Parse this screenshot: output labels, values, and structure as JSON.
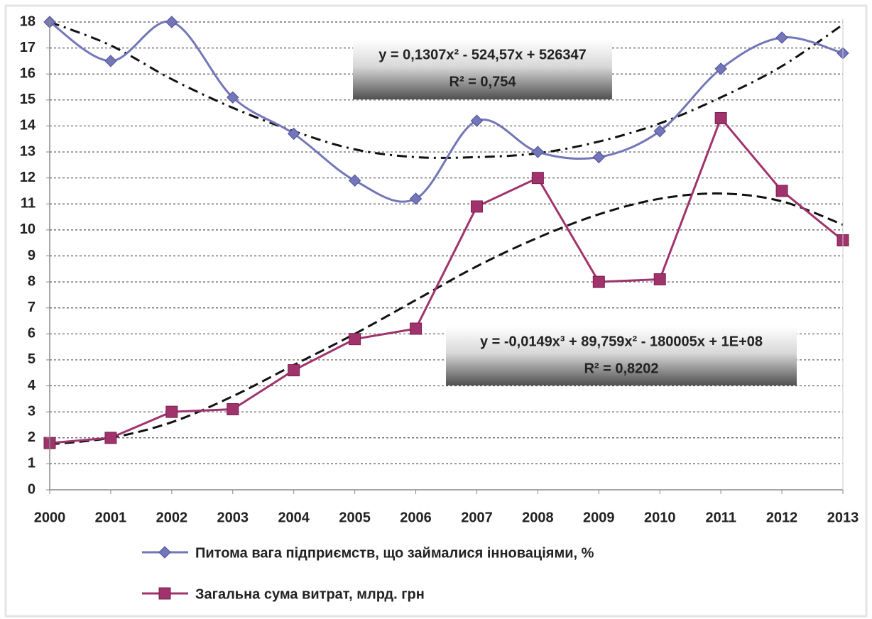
{
  "chart_data": {
    "type": "line",
    "categories": [
      "2000",
      "2001",
      "2002",
      "2003",
      "2004",
      "2005",
      "2006",
      "2007",
      "2008",
      "2009",
      "2010",
      "2011",
      "2012",
      "2013"
    ],
    "series": [
      {
        "name": "Питома вага підприємств, що займалися інноваціями, %",
        "color": "#7376b8",
        "marker": "diamond",
        "smooth": true,
        "values": [
          18,
          16.5,
          18,
          15.1,
          13.7,
          11.9,
          11.2,
          14.2,
          13.0,
          12.8,
          13.8,
          16.2,
          17.4,
          16.8
        ]
      },
      {
        "name": "Загальна сума витрат, млрд. грн",
        "color": "#a0336c",
        "marker": "square",
        "smooth": false,
        "values": [
          1.8,
          2.0,
          3.0,
          3.1,
          4.6,
          5.8,
          6.2,
          10.9,
          12.0,
          8.0,
          8.1,
          14.3,
          11.5,
          9.6
        ]
      }
    ],
    "trendlines": [
      {
        "dash": "14 7 3 7",
        "values": [
          18.0,
          17.1,
          15.8,
          14.7,
          13.8,
          13.1,
          12.8,
          12.8,
          12.95,
          13.4,
          14.1,
          15.1,
          16.3,
          17.9
        ]
      },
      {
        "dash": "14 7",
        "values": [
          1.75,
          2.0,
          2.6,
          3.6,
          4.8,
          6.0,
          7.3,
          8.6,
          9.7,
          10.6,
          11.2,
          11.4,
          11.1,
          10.2
        ]
      }
    ],
    "annotations": [
      {
        "equation": "y = 0,1307x² - 524,57x + 526347",
        "r2": "R² = 0,754"
      },
      {
        "equation": "y = -0,0149x³ + 89,759x² - 180005x + 1E+08",
        "r2": "R² = 0,8202"
      }
    ],
    "ylim": [
      0,
      18
    ],
    "yticks": [
      0,
      1,
      2,
      3,
      4,
      5,
      6,
      7,
      8,
      9,
      10,
      11,
      12,
      13,
      14,
      15,
      16,
      17,
      18
    ],
    "grid": true
  }
}
